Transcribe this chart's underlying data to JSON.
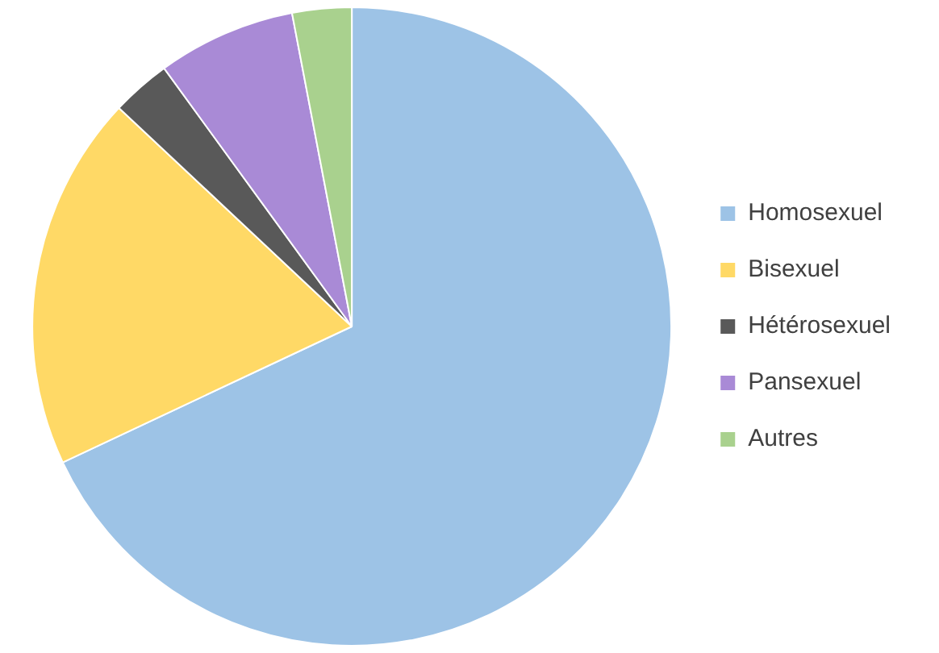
{
  "chart_data": {
    "type": "pie",
    "categories": [
      "Homosexuel",
      "Bisexuel",
      "Hétérosexuel",
      "Pansexuel",
      "Autres"
    ],
    "values": [
      68,
      19,
      3,
      7,
      3
    ],
    "colors": [
      "#9dc3e6",
      "#ffd966",
      "#595959",
      "#a98ad6",
      "#a9d18e"
    ],
    "legend": "right"
  }
}
